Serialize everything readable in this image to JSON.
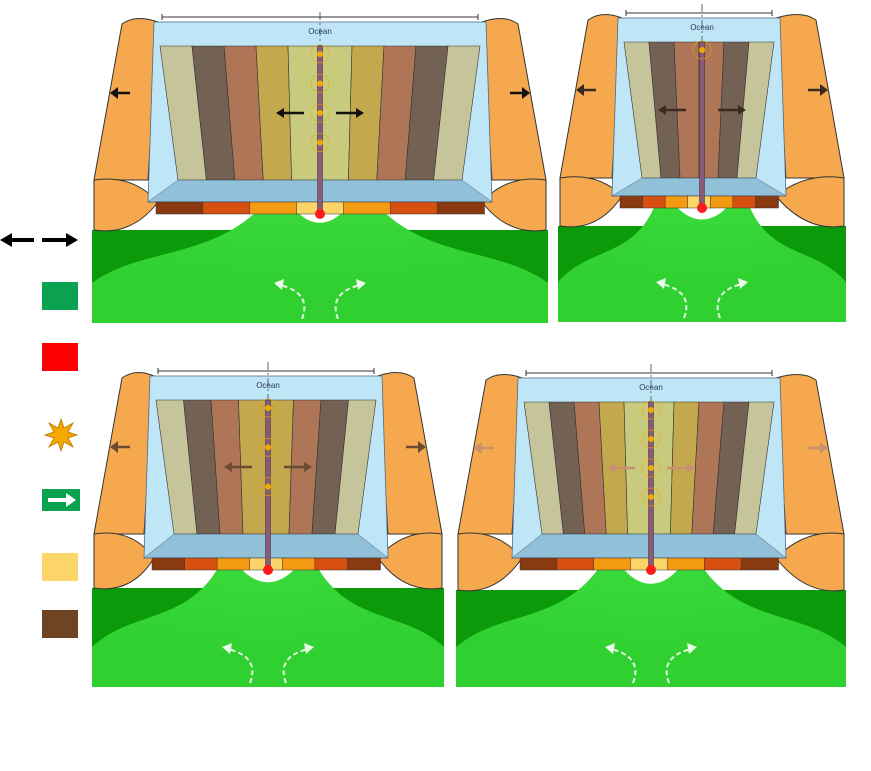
{
  "panels": [
    {
      "id": "panel-a",
      "ocean_label": "Ocean",
      "stripes": [
        "#c5c49b",
        "#736154",
        "#ae7557",
        "#c3a84d",
        "#c8cb7d",
        "#c8cb7d",
        "#c3a84d",
        "#ae7557",
        "#736154",
        "#c5c49b"
      ],
      "quakes": 4,
      "arrow_style": "black"
    },
    {
      "id": "panel-b",
      "ocean_label": "Ocean",
      "stripes": [
        "#c5c49b",
        "#736154",
        "#ae7557",
        "#ae7557",
        "#736154",
        "#c5c49b"
      ],
      "quakes": 1,
      "arrow_style": "dark"
    },
    {
      "id": "panel-c",
      "ocean_label": "Ocean",
      "stripes": [
        "#c5c49b",
        "#736154",
        "#ae7557",
        "#c3a84d",
        "#c3a84d",
        "#ae7557",
        "#736154",
        "#c5c49b"
      ],
      "quakes": 3,
      "arrow_style": "brown"
    },
    {
      "id": "panel-d",
      "ocean_label": "Ocean",
      "stripes": [
        "#c5c49b",
        "#736154",
        "#ae7557",
        "#c3a84d",
        "#c8cb7d",
        "#c8cb7d",
        "#c3a84d",
        "#ae7557",
        "#736154",
        "#c5c49b"
      ],
      "quakes": 4,
      "arrow_style": "faded"
    }
  ],
  "legend": [
    {
      "name": "plate-motion-arrows-key",
      "icon": "double-arrow-icon",
      "color": "#000000"
    },
    {
      "name": "mantle-key",
      "icon": "green-swatch",
      "color": "#0aa150"
    },
    {
      "name": "magma-key",
      "icon": "red-swatch",
      "color": "#ff0000"
    },
    {
      "name": "earthquake-key",
      "icon": "starburst-icon",
      "color": "#f5a800"
    },
    {
      "name": "convection-key",
      "icon": "green-arrow-icon",
      "color": "#0aa150"
    },
    {
      "name": "young-crust-key",
      "icon": "yellow-swatch",
      "color": "#fbd46a"
    },
    {
      "name": "old-crust-key",
      "icon": "brown-swatch",
      "color": "#6e4524"
    }
  ],
  "colors": {
    "ocean": "#bfe6f7",
    "continent": "#f6a84f",
    "mantle_dark": "#0a9a0a",
    "mantle_light": "#3ddc3d",
    "magma": "#ff1a1a",
    "quake": "#f5a800"
  }
}
